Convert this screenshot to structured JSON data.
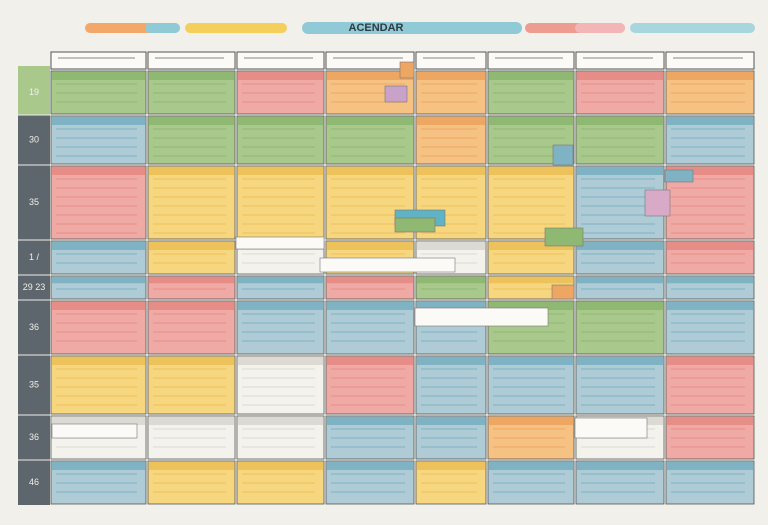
{
  "header": {
    "title": "ACENDAR"
  },
  "row_labels": [
    "19",
    "30",
    "35",
    "1 /",
    "29 23",
    "36",
    "35",
    "36",
    "46"
  ]
}
